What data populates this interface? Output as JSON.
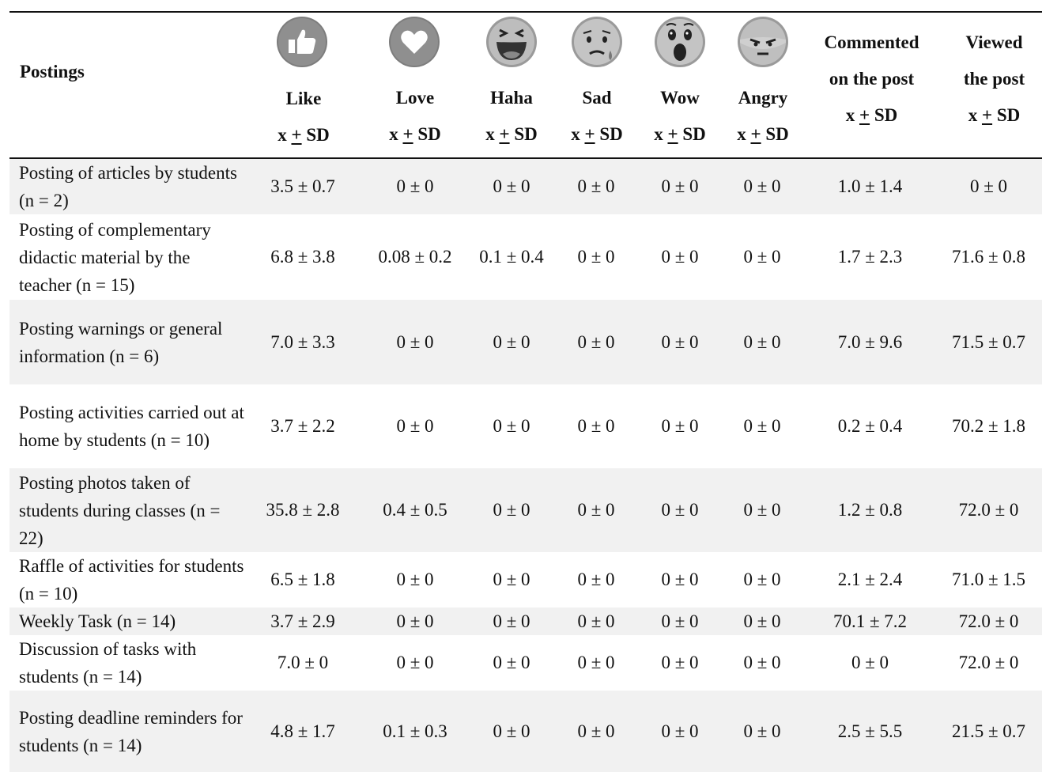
{
  "header": {
    "postings": "Postings",
    "reactions": [
      {
        "name": "Like",
        "icon": "like-icon"
      },
      {
        "name": "Love",
        "icon": "love-icon"
      },
      {
        "name": "Haha",
        "icon": "haha-icon"
      },
      {
        "name": "Sad",
        "icon": "sad-icon"
      },
      {
        "name": "Wow",
        "icon": "wow-icon"
      },
      {
        "name": "Angry",
        "icon": "angry-icon"
      }
    ],
    "stat_prefix": "x ",
    "stat_pm": "+",
    "stat_suffix": " SD",
    "commented_line1": "Commented",
    "commented_line2": "on the post",
    "viewed_line1": "Viewed",
    "viewed_line2": "the post"
  },
  "rows": [
    {
      "label": "Posting of articles by students (n = 2)",
      "values": [
        "3.5 ± 0.7",
        "0 ± 0",
        "0 ± 0",
        "0 ± 0",
        "0 ± 0",
        "0 ± 0",
        "1.0 ± 1.4",
        "0 ± 0"
      ]
    },
    {
      "label": "Posting of complementary didactic material by the teacher (n = 15)",
      "values": [
        "6.8 ± 3.8",
        "0.08 ± 0.2",
        "0.1 ± 0.4",
        "0 ± 0",
        "0 ± 0",
        "0 ± 0",
        "1.7 ± 2.3",
        "71.6 ± 0.8"
      ]
    },
    {
      "label": "Posting warnings or general information (n = 6)",
      "values": [
        "7.0 ± 3.3",
        "0 ± 0",
        "0 ± 0",
        "0 ± 0",
        "0 ± 0",
        "0 ± 0",
        "7.0 ± 9.6",
        "71.5 ± 0.7"
      ]
    },
    {
      "label": "Posting activities carried out at home by students (n = 10)",
      "values": [
        "3.7 ± 2.2",
        "0 ± 0",
        "0 ± 0",
        "0 ± 0",
        "0 ± 0",
        "0 ± 0",
        "0.2 ± 0.4",
        "70.2 ± 1.8"
      ]
    },
    {
      "label": "Posting photos taken of students during classes (n = 22)",
      "values": [
        "35.8 ± 2.8",
        "0.4 ± 0.5",
        "0 ± 0",
        "0 ± 0",
        "0 ± 0",
        "0 ± 0",
        "1.2 ± 0.8",
        "72.0 ± 0"
      ]
    },
    {
      "label": "Raffle of activities for students (n = 10)",
      "values": [
        "6.5 ± 1.8",
        "0 ± 0",
        "0 ± 0",
        "0 ± 0",
        "0 ± 0",
        "0 ± 0",
        "2.1 ± 2.4",
        "71.0 ± 1.5"
      ]
    },
    {
      "label": "Weekly Task (n = 14)",
      "values": [
        "3.7 ± 2.9",
        "0 ± 0",
        "0 ± 0",
        "0 ± 0",
        "0 ± 0",
        "0 ± 0",
        "70.1 ± 7.2",
        "72.0 ± 0"
      ]
    },
    {
      "label": "Discussion of tasks with students (n = 14)",
      "values": [
        "7.0 ± 0",
        "0 ± 0",
        "0 ± 0",
        "0 ± 0",
        "0 ± 0",
        "0 ± 0",
        "0 ± 0",
        "72.0 ± 0"
      ]
    },
    {
      "label": "Posting deadline reminders for students (n = 14)",
      "values": [
        "4.8 ± 1.7",
        "0.1 ± 0.3",
        "0 ± 0",
        "0 ± 0",
        "0 ± 0",
        "0 ± 0",
        "2.5 ± 5.5",
        "21.5 ± 0.7"
      ]
    }
  ]
}
